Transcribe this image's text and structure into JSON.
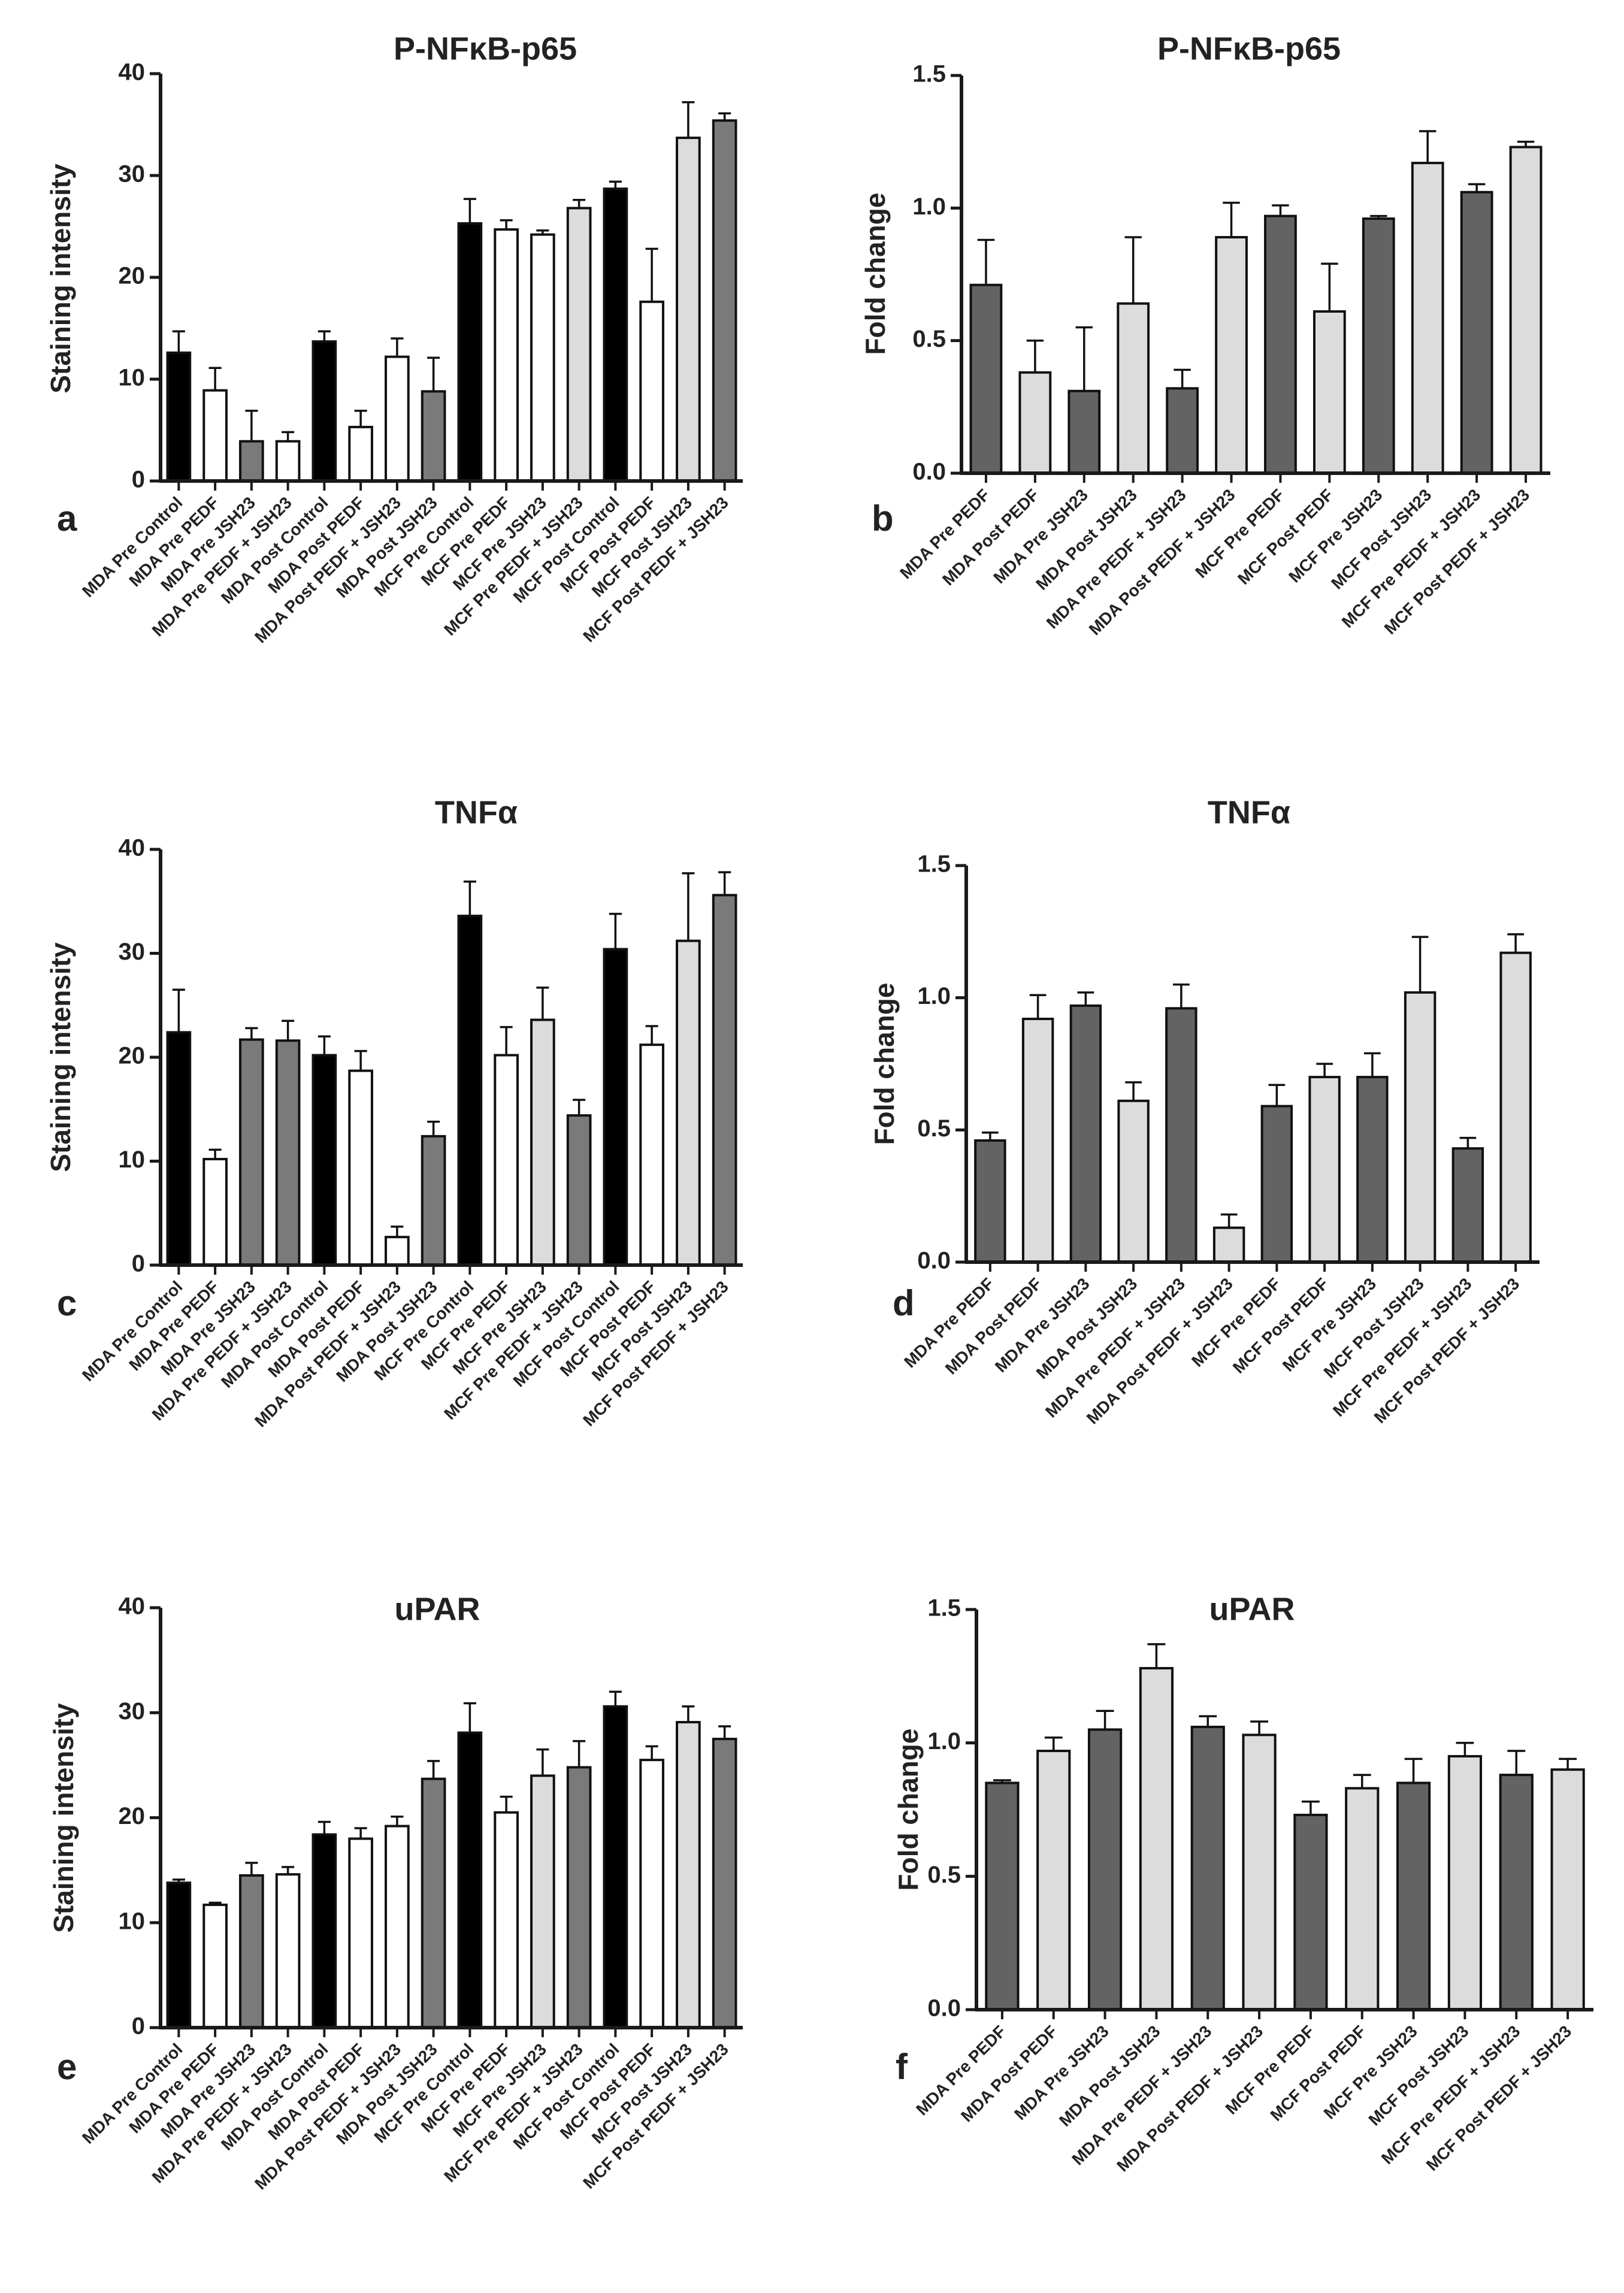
{
  "figure": {
    "style": {
      "black": "#000000",
      "white": "#ffffff",
      "gray": "#7a7a7a",
      "darkgray": "#636363",
      "lightgray": "#dcdcdc",
      "axis": "#1a1a1a"
    },
    "panels": [
      {
        "letter": "a",
        "chart_data": {
          "type": "bar",
          "title": "P-NFκB-p65",
          "ylabel": "Staining intensity",
          "xlabel": "",
          "ylim": [
            0,
            40
          ],
          "yticks": [
            0,
            10,
            20,
            30,
            40
          ],
          "ytick_labels": [
            "0",
            "10",
            "20",
            "30",
            "40"
          ],
          "categories": [
            "MDA Pre Control",
            "MDA Pre PEDF",
            "MDA Pre JSH23",
            "MDA Pre PEDF + JSH23",
            "MDA Post Control",
            "MDA Post PEDF",
            "MDA Post PEDF + JSH23",
            "MDA Post JSH23",
            "MCF Pre Control",
            "MCF Pre PEDF",
            "MCF Pre JSH23",
            "MCF Pre PEDF + JSH23",
            "MCF Post Control",
            "MCF Post PEDF",
            "MCF Post JSH23",
            "MCF Post PEDF + JSH23"
          ],
          "values": [
            12.6,
            8.9,
            3.9,
            3.9,
            13.7,
            5.3,
            12.2,
            8.8,
            25.3,
            24.7,
            24.2,
            26.8,
            28.7,
            17.6,
            33.7,
            35.4
          ],
          "errors": [
            2.1,
            2.2,
            3.0,
            0.9,
            1.0,
            1.6,
            1.8,
            3.3,
            2.4,
            0.9,
            0.4,
            0.8,
            0.7,
            5.2,
            3.5,
            0.7
          ],
          "fills": [
            "black",
            "white",
            "gray",
            "white",
            "black",
            "white",
            "white",
            "gray",
            "black",
            "white",
            "white",
            "lightgray",
            "black",
            "white",
            "lightgray",
            "gray"
          ]
        }
      },
      {
        "letter": "b",
        "chart_data": {
          "type": "bar",
          "title": "P-NFκB-p65",
          "ylabel": "Fold change",
          "xlabel": "",
          "ylim": [
            0,
            1.5
          ],
          "yticks": [
            0,
            0.5,
            1.0,
            1.5
          ],
          "ytick_labels": [
            "0.0",
            "0.5",
            "1.0",
            "1.5"
          ],
          "categories": [
            "MDA Pre PEDF",
            "MDA Post PEDF",
            "MDA Pre JSH23",
            "MDA Post JSH23",
            "MDA Pre PEDF + JSH23",
            "MDA Post PEDF + JSH23",
            "MCF Pre PEDF",
            "MCF Post PEDF",
            "MCF Pre JSH23",
            "MCF Post JSH23",
            "MCF Pre PEDF + JSH23",
            "MCF Post PEDF + JSH23"
          ],
          "values": [
            0.71,
            0.38,
            0.31,
            0.64,
            0.32,
            0.89,
            0.97,
            0.61,
            0.96,
            1.17,
            1.06,
            1.23
          ],
          "errors": [
            0.17,
            0.12,
            0.24,
            0.25,
            0.07,
            0.13,
            0.04,
            0.18,
            0.01,
            0.12,
            0.03,
            0.02
          ],
          "fills": [
            "darkgray",
            "lightgray",
            "darkgray",
            "lightgray",
            "darkgray",
            "lightgray",
            "darkgray",
            "lightgray",
            "darkgray",
            "lightgray",
            "darkgray",
            "lightgray"
          ]
        }
      },
      {
        "letter": "c",
        "chart_data": {
          "type": "bar",
          "title": "TNFα",
          "ylabel": "Staining intensity",
          "xlabel": "",
          "ylim": [
            0,
            40
          ],
          "yticks": [
            0,
            10,
            20,
            30,
            40
          ],
          "ytick_labels": [
            "0",
            "10",
            "20",
            "30",
            "40"
          ],
          "categories": [
            "MDA Pre Control",
            "MDA Pre PEDF",
            "MDA Pre JSH23",
            "MDA Pre PEDF + JSH23",
            "MDA Post Control",
            "MDA Post PEDF",
            "MDA Post PEDF + JSH23",
            "MDA Post JSH23",
            "MCF Pre Control",
            "MCF Pre PEDF",
            "MCF Pre JSH23",
            "MCF Pre PEDF + JSH23",
            "MCF Post Control",
            "MCF Post PEDF",
            "MCF Post JSH23",
            "MCF Post PEDF + JSH23"
          ],
          "values": [
            22.4,
            10.2,
            21.7,
            21.6,
            20.2,
            18.7,
            2.7,
            12.4,
            33.6,
            20.2,
            23.6,
            14.4,
            30.4,
            21.2,
            31.2,
            35.6
          ],
          "errors": [
            4.1,
            0.9,
            1.1,
            1.9,
            1.8,
            1.9,
            1.0,
            1.4,
            3.3,
            2.7,
            3.1,
            1.5,
            3.4,
            1.8,
            6.5,
            2.2
          ],
          "fills": [
            "black",
            "white",
            "gray",
            "gray",
            "black",
            "white",
            "white",
            "gray",
            "black",
            "white",
            "lightgray",
            "gray",
            "black",
            "white",
            "lightgray",
            "gray"
          ]
        }
      },
      {
        "letter": "d",
        "chart_data": {
          "type": "bar",
          "title": "TNFα",
          "ylabel": "Fold change",
          "xlabel": "",
          "ylim": [
            0,
            1.5
          ],
          "yticks": [
            0,
            0.5,
            1.0,
            1.5
          ],
          "ytick_labels": [
            "0.0",
            "0.5",
            "1.0",
            "1.5"
          ],
          "categories": [
            "MDA Pre PEDF",
            "MDA Post PEDF",
            "MDA Pre JSH23",
            "MDA Post JSH23",
            "MDA Pre PEDF + JSH23",
            "MDA Post PEDF + JSH23",
            "MCF Pre PEDF",
            "MCF Post PEDF",
            "MCF Pre JSH23",
            "MCF Post JSH23",
            "MCF Pre PEDF + JSH23",
            "MCF Post PEDF + JSH23"
          ],
          "values": [
            0.46,
            0.92,
            0.97,
            0.61,
            0.96,
            0.13,
            0.59,
            0.7,
            0.7,
            1.02,
            0.43,
            1.17
          ],
          "errors": [
            0.03,
            0.09,
            0.05,
            0.07,
            0.09,
            0.05,
            0.08,
            0.05,
            0.09,
            0.21,
            0.04,
            0.07
          ],
          "fills": [
            "darkgray",
            "lightgray",
            "darkgray",
            "lightgray",
            "darkgray",
            "lightgray",
            "darkgray",
            "lightgray",
            "darkgray",
            "lightgray",
            "darkgray",
            "lightgray"
          ]
        }
      },
      {
        "letter": "e",
        "chart_data": {
          "type": "bar",
          "title": "uPAR",
          "ylabel": "Staining intensity",
          "xlabel": "",
          "ylim": [
            0,
            40
          ],
          "yticks": [
            0,
            10,
            20,
            30,
            40
          ],
          "ytick_labels": [
            "0",
            "10",
            "20",
            "30",
            "40"
          ],
          "categories": [
            "MDA Pre Control",
            "MDA Pre PEDF",
            "MDA Pre JSH23",
            "MDA Pre PEDF + JSH23",
            "MDA Post Control",
            "MDA Post PEDF",
            "MDA Post PEDF + JSH23",
            "MDA Post JSH23",
            "MCF Pre Control",
            "MCF Pre PEDF",
            "MCF Pre JSH23",
            "MCF Pre PEDF + JSH23",
            "MCF Post Control",
            "MCF Post PEDF",
            "MCF Post JSH23",
            "MCF Post PEDF + JSH23"
          ],
          "values": [
            13.8,
            11.7,
            14.5,
            14.6,
            18.4,
            18.0,
            19.2,
            23.7,
            28.1,
            20.5,
            24.0,
            24.8,
            30.6,
            25.5,
            29.1,
            27.5
          ],
          "errors": [
            0.3,
            0.2,
            1.2,
            0.7,
            1.2,
            1.0,
            0.9,
            1.7,
            2.8,
            1.5,
            2.5,
            2.5,
            1.4,
            1.3,
            1.5,
            1.2
          ],
          "fills": [
            "black",
            "white",
            "gray",
            "white",
            "black",
            "white",
            "white",
            "gray",
            "black",
            "white",
            "lightgray",
            "gray",
            "black",
            "white",
            "lightgray",
            "gray"
          ]
        }
      },
      {
        "letter": "f",
        "chart_data": {
          "type": "bar",
          "title": "uPAR",
          "ylabel": "Fold change",
          "xlabel": "",
          "ylim": [
            0,
            1.5
          ],
          "yticks": [
            0,
            0.5,
            1.0,
            1.5
          ],
          "ytick_labels": [
            "0.0",
            "0.5",
            "1.0",
            "1.5"
          ],
          "categories": [
            "MDA Pre PEDF",
            "MDA Post PEDF",
            "MDA Pre JSH23",
            "MDA Post JSH23",
            "MDA Pre PEDF + JSH23",
            "MDA Post PEDF + JSH23",
            "MCF Pre PEDF",
            "MCF Post PEDF",
            "MCF Pre JSH23",
            "MCF Post JSH23",
            "MCF Pre PEDF + JSH23",
            "MCF Post PEDF + JSH23"
          ],
          "values": [
            0.85,
            0.97,
            1.05,
            1.28,
            1.06,
            1.03,
            0.73,
            0.83,
            0.85,
            0.95,
            0.88,
            0.9
          ],
          "errors": [
            0.01,
            0.05,
            0.07,
            0.09,
            0.04,
            0.05,
            0.05,
            0.05,
            0.09,
            0.05,
            0.09,
            0.04
          ],
          "fills": [
            "darkgray",
            "lightgray",
            "darkgray",
            "lightgray",
            "darkgray",
            "lightgray",
            "darkgray",
            "lightgray",
            "darkgray",
            "lightgray",
            "darkgray",
            "lightgray"
          ]
        }
      }
    ]
  }
}
